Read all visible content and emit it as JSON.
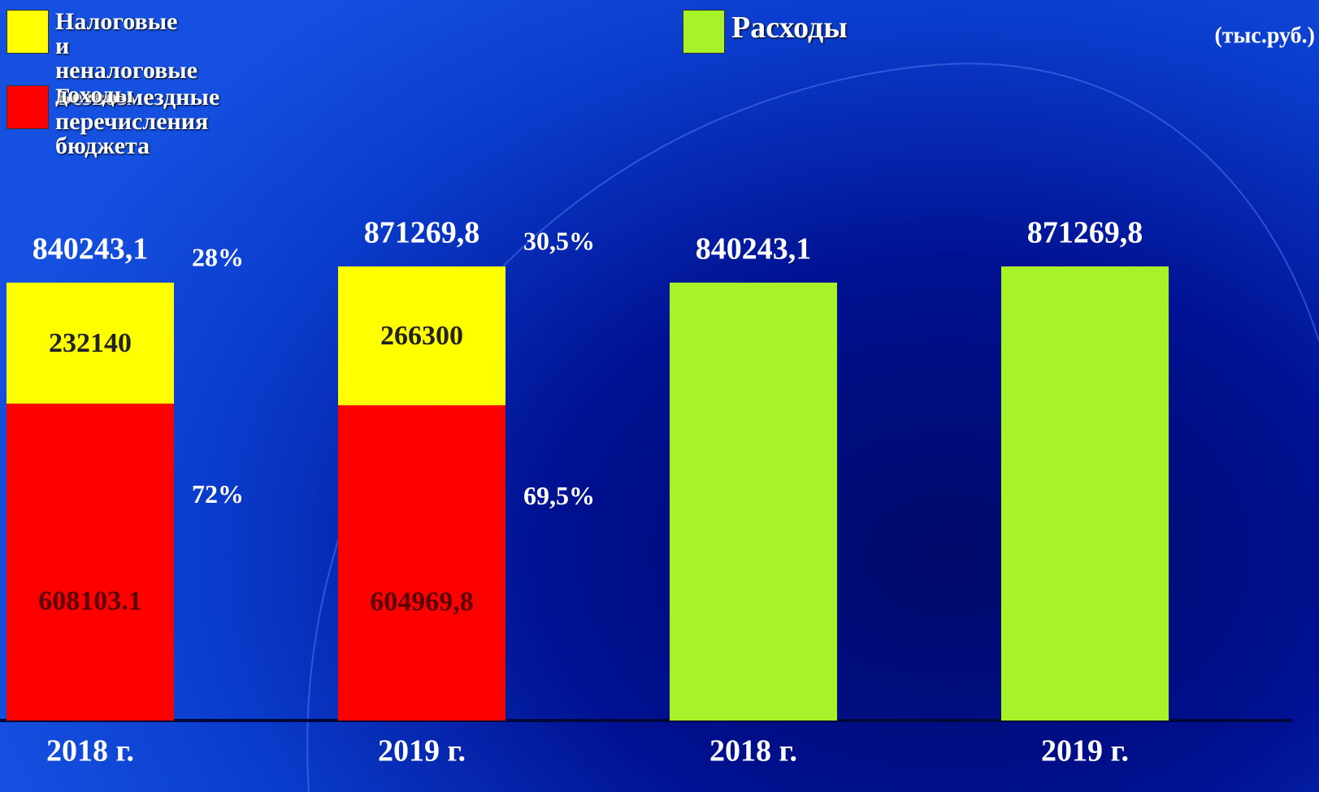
{
  "chart_data": {
    "type": "stacked_bar",
    "unit": "(тыс.руб.)",
    "categories": [
      "2018 г.",
      "2019 г.",
      "2018 г.",
      "2019 г."
    ],
    "series": [
      {
        "name": "Безвозмездные перечисления бюджета",
        "color": "#ff0000",
        "label_color": "#5a0000",
        "values": [
          608103.1,
          604969.8,
          null,
          null
        ],
        "value_labels": [
          "608103.1",
          "604969,8",
          null,
          null
        ],
        "percent_labels": [
          "72%",
          "69,5%",
          null,
          null
        ]
      },
      {
        "name": "Налоговые и неналоговые доходы",
        "color": "#ffff00",
        "label_color": "#222222",
        "values": [
          232140,
          266300,
          null,
          null
        ],
        "value_labels": [
          "232140",
          "266300",
          null,
          null
        ],
        "percent_labels": [
          "28%",
          "30,5%",
          null,
          null
        ]
      },
      {
        "name": "Расходы",
        "color": "#a8f22a",
        "label_color": "#222222",
        "values": [
          null,
          null,
          840243.1,
          871269.8
        ]
      }
    ],
    "totals": [
      840243.1,
      871269.8,
      840243.1,
      871269.8
    ],
    "total_labels": [
      "840243,1",
      "871269,8",
      "840243,1",
      "871269,8"
    ]
  }
}
